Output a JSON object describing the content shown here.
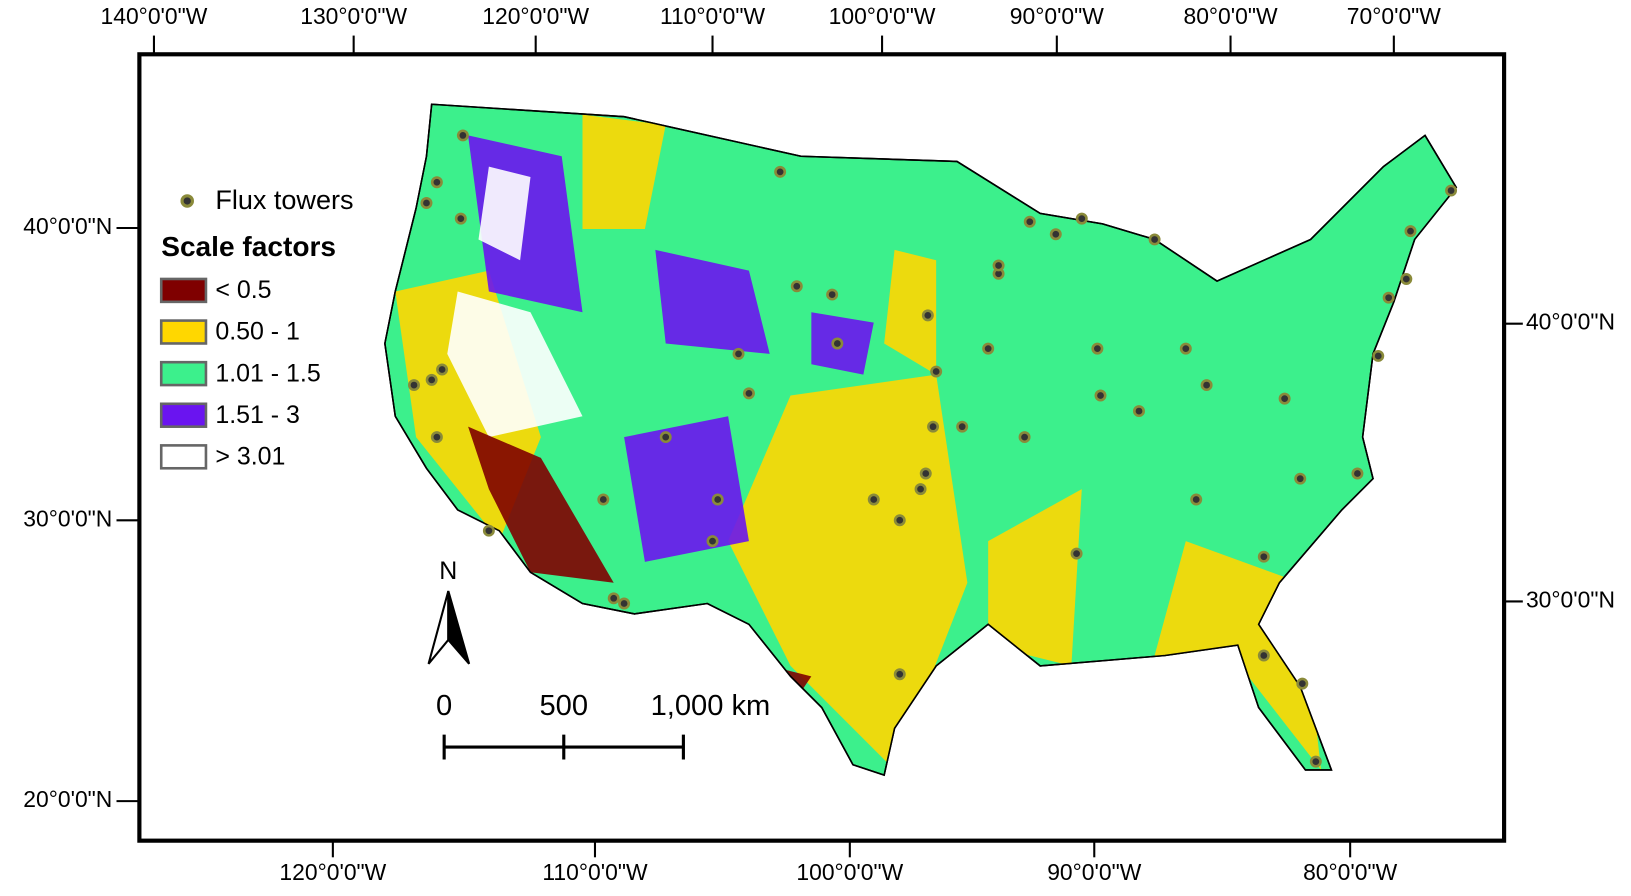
{
  "top_labels": [
    "140°0'0\"W",
    "130°0'0\"W",
    "120°0'0\"W",
    "110°0'0\"W",
    "100°0'0\"W",
    "90°0'0\"W",
    "80°0'0\"W",
    "70°0'0\"W"
  ],
  "bottom_labels": [
    "120°0'0\"W",
    "110°0'0\"W",
    "100°0'0\"W",
    "90°0'0\"W",
    "80°0'0\"W"
  ],
  "left_labels": [
    "40°0'0\"N",
    "30°0'0\"N",
    "20°0'0\"N"
  ],
  "right_labels": [
    "40°0'0\"N",
    "30°0'0\"N"
  ],
  "legend": {
    "point_label": "Flux towers",
    "title": "Scale factors",
    "classes": [
      {
        "label": "< 0.5",
        "color": "#7f0000"
      },
      {
        "label": "0.50 - 1",
        "color": "#ffd700"
      },
      {
        "label": "1.01 - 1.5",
        "color": "#3cf08c"
      },
      {
        "label": "1.51 - 3",
        "color": "#6a14f0"
      },
      {
        "label": "> 3.01",
        "color": "#ffffff"
      }
    ]
  },
  "north_arrow": "N",
  "scale_bar": [
    "0",
    "500",
    "1,000 km"
  ]
}
